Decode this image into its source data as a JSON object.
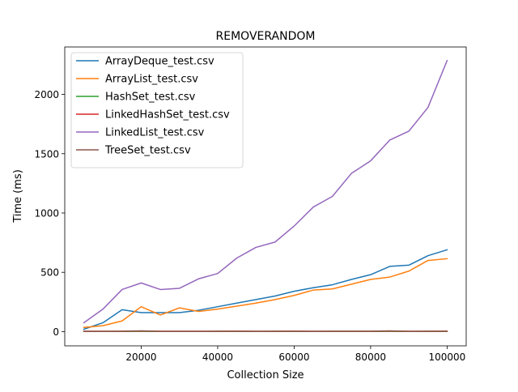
{
  "chart_data": {
    "type": "line",
    "title": "REMOVERANDOM",
    "xlabel": "Collection Size",
    "ylabel": "Time (ms)",
    "xlim": [
      0,
      105000
    ],
    "ylim": [
      -120,
      2400
    ],
    "xticks": [
      20000,
      40000,
      60000,
      80000,
      100000
    ],
    "xtick_labels": [
      "20000",
      "40000",
      "60000",
      "80000",
      "100000"
    ],
    "yticks": [
      0,
      500,
      1000,
      1500,
      2000
    ],
    "ytick_labels": [
      "0",
      "500",
      "1000",
      "1500",
      "2000"
    ],
    "grid": false,
    "legend_position": "top-left",
    "x": [
      5000,
      10000,
      15000,
      20000,
      25000,
      30000,
      35000,
      40000,
      45000,
      50000,
      55000,
      60000,
      65000,
      70000,
      75000,
      80000,
      85000,
      90000,
      95000,
      100000
    ],
    "series": [
      {
        "name": "ArrayDeque_test.csv",
        "color": "#1f77b4",
        "values": [
          20,
          75,
          185,
          160,
          160,
          160,
          180,
          210,
          240,
          270,
          300,
          340,
          370,
          395,
          440,
          480,
          550,
          560,
          640,
          690
        ]
      },
      {
        "name": "ArrayList_test.csv",
        "color": "#ff7f0e",
        "values": [
          35,
          50,
          90,
          210,
          140,
          200,
          170,
          190,
          215,
          240,
          270,
          305,
          350,
          360,
          400,
          440,
          460,
          510,
          600,
          615
        ]
      },
      {
        "name": "HashSet_test.csv",
        "color": "#2ca02c",
        "values": [
          1,
          1,
          1,
          2,
          1,
          1,
          1,
          1,
          2,
          1,
          1,
          2,
          1,
          1,
          1,
          1,
          2,
          1,
          1,
          1
        ]
      },
      {
        "name": "LinkedHashSet_test.csv",
        "color": "#d62728",
        "values": [
          3,
          3,
          3,
          5,
          3,
          3,
          3,
          3,
          4,
          3,
          3,
          4,
          3,
          3,
          3,
          3,
          4,
          3,
          3,
          4
        ]
      },
      {
        "name": "LinkedList_test.csv",
        "color": "#9467bd",
        "values": [
          75,
          190,
          355,
          410,
          355,
          365,
          445,
          490,
          620,
          710,
          755,
          890,
          1050,
          1140,
          1335,
          1440,
          1615,
          1690,
          1890,
          2285
        ]
      },
      {
        "name": "TreeSet_test.csv",
        "color": "#8c564b",
        "values": [
          2,
          2,
          3,
          6,
          2,
          2,
          2,
          3,
          3,
          2,
          3,
          3,
          2,
          3,
          3,
          3,
          6,
          2,
          3,
          3
        ]
      }
    ]
  }
}
